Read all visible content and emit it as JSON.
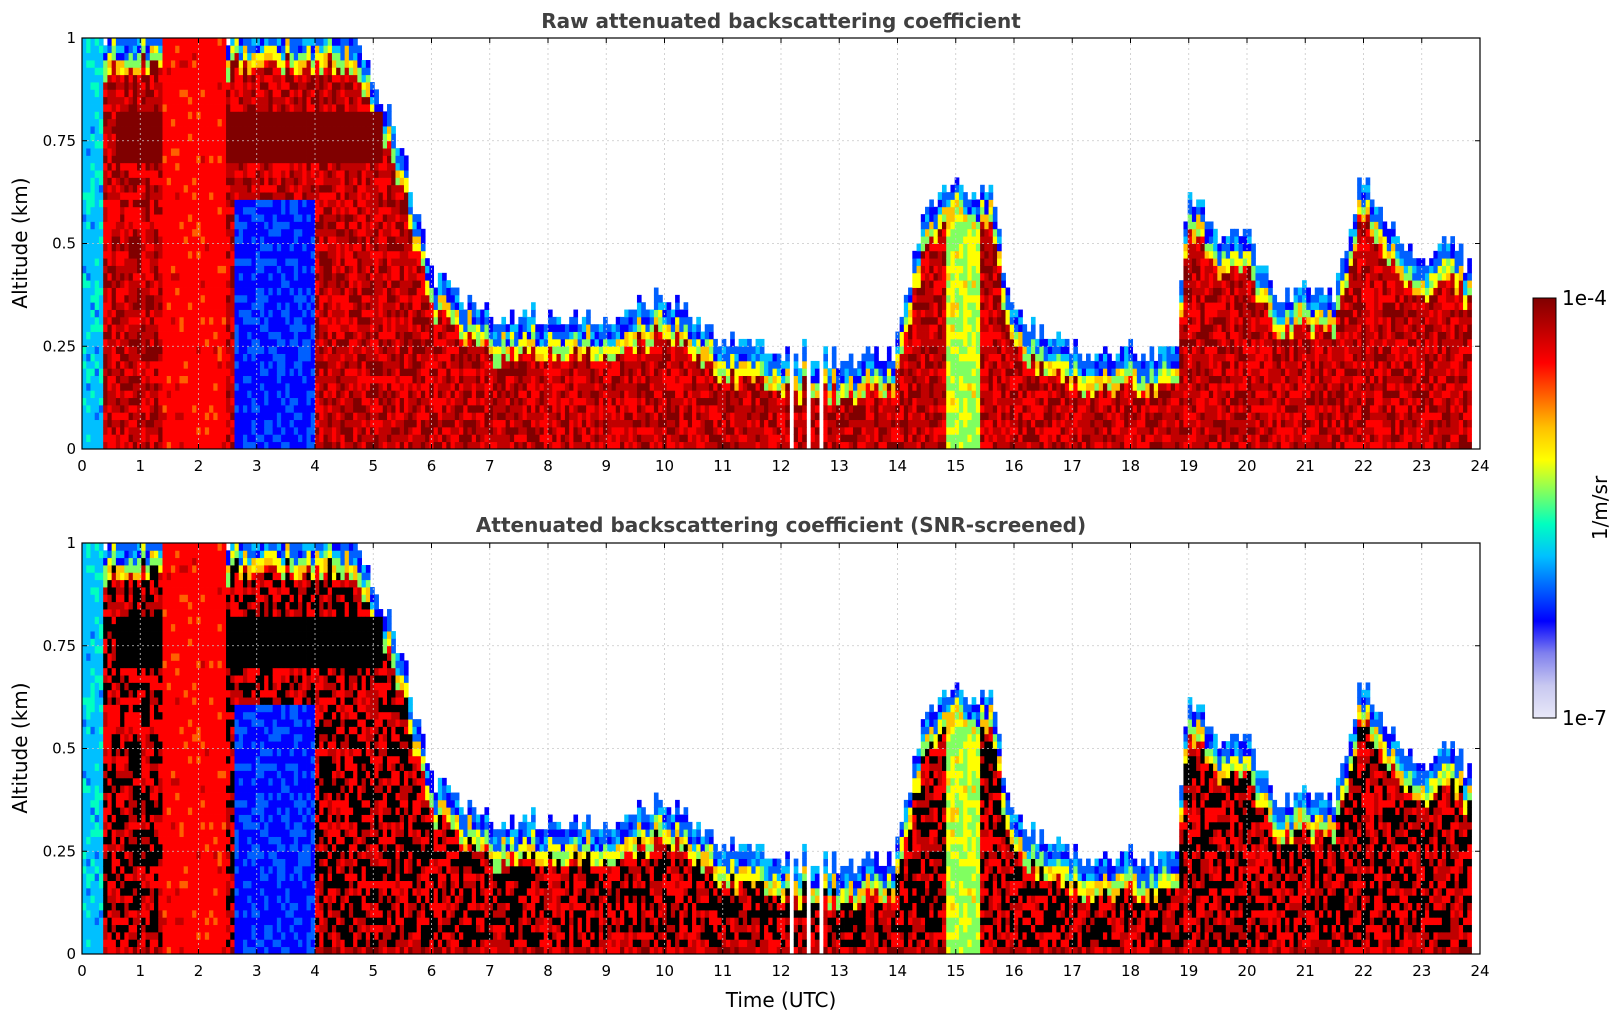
{
  "chart_data": [
    {
      "type": "heatmap",
      "title": "Raw attenuated backscattering coefficient",
      "xlabel": "",
      "ylabel": "Altitude (km)",
      "xlim": [
        0,
        24
      ],
      "ylim": [
        0,
        1
      ],
      "x_ticks": [
        "0",
        "1",
        "2",
        "3",
        "4",
        "5",
        "6",
        "7",
        "8",
        "9",
        "10",
        "11",
        "12",
        "13",
        "14",
        "15",
        "16",
        "17",
        "18",
        "19",
        "20",
        "21",
        "22",
        "23",
        "24"
      ],
      "y_ticks": [
        "0",
        "0.25",
        "0.5",
        "0.75",
        "1"
      ],
      "grid": true,
      "snr_screened": false,
      "cloud_top_km": {
        "time_utc": [
          0.0,
          0.5,
          1.0,
          1.5,
          2.0,
          2.5,
          3.0,
          3.5,
          4.0,
          4.5,
          5.0,
          5.5,
          6.0,
          7.0,
          8.0,
          9.0,
          10.0,
          11.0,
          12.0,
          13.0,
          13.9,
          14.5,
          15.0,
          15.6,
          16.0,
          17.0,
          18.0,
          18.8,
          19.0,
          19.5,
          20.0,
          20.5,
          21.0,
          21.5,
          22.0,
          22.5,
          23.0,
          23.5,
          23.8
        ],
        "altitude_km": [
          1.0,
          1.0,
          1.0,
          1.0,
          1.0,
          1.0,
          1.0,
          1.0,
          1.0,
          1.0,
          0.9,
          0.7,
          0.4,
          0.3,
          0.3,
          0.3,
          0.35,
          0.25,
          0.22,
          0.2,
          0.2,
          0.58,
          0.62,
          0.6,
          0.3,
          0.22,
          0.22,
          0.22,
          0.62,
          0.5,
          0.5,
          0.35,
          0.38,
          0.35,
          0.65,
          0.5,
          0.42,
          0.5,
          0.42
        ]
      }
    },
    {
      "type": "heatmap",
      "title": "Attenuated backscattering coefficient (SNR-screened)",
      "xlabel": "Time (UTC)",
      "ylabel": "Altitude (km)",
      "xlim": [
        0,
        24
      ],
      "ylim": [
        0,
        1
      ],
      "x_ticks": [
        "0",
        "1",
        "2",
        "3",
        "4",
        "5",
        "6",
        "7",
        "8",
        "9",
        "10",
        "11",
        "12",
        "13",
        "14",
        "15",
        "16",
        "17",
        "18",
        "19",
        "20",
        "21",
        "22",
        "23",
        "24"
      ],
      "y_ticks": [
        "0",
        "0.25",
        "0.5",
        "0.75",
        "1"
      ],
      "grid": true,
      "snr_screened": true,
      "cloud_top_km": {
        "time_utc": [
          0.0,
          0.5,
          1.0,
          1.5,
          2.0,
          2.5,
          3.0,
          3.5,
          4.0,
          4.5,
          5.0,
          5.5,
          6.0,
          7.0,
          8.0,
          9.0,
          10.0,
          11.0,
          12.0,
          13.0,
          13.9,
          14.5,
          15.0,
          15.6,
          16.0,
          17.0,
          18.0,
          18.8,
          19.0,
          19.5,
          20.0,
          20.5,
          21.0,
          21.5,
          22.0,
          22.5,
          23.0,
          23.5,
          23.8
        ],
        "altitude_km": [
          1.0,
          1.0,
          1.0,
          1.0,
          1.0,
          1.0,
          1.0,
          1.0,
          1.0,
          1.0,
          0.9,
          0.7,
          0.4,
          0.3,
          0.3,
          0.3,
          0.35,
          0.25,
          0.22,
          0.2,
          0.2,
          0.58,
          0.62,
          0.6,
          0.3,
          0.22,
          0.22,
          0.22,
          0.62,
          0.5,
          0.5,
          0.35,
          0.38,
          0.35,
          0.65,
          0.5,
          0.42,
          0.5,
          0.42
        ]
      }
    }
  ],
  "colorbar": {
    "label": "1/m/sr",
    "max_label": "1e-4",
    "min_label": "1e-7",
    "range": [
      1e-07,
      0.0001
    ],
    "scale": "log",
    "colormap": [
      "#e8e8f8",
      "#c8c8f0",
      "#8080ee",
      "#0000ff",
      "#0060ff",
      "#00c0ff",
      "#00ffc0",
      "#80ff60",
      "#ffff00",
      "#ffc000",
      "#ff6000",
      "#ff0000",
      "#c00000",
      "#800000"
    ]
  },
  "colors": {
    "background": "#ffffff",
    "grid": "#c8c8c8",
    "title": "#404040",
    "screened_mask": "#000000"
  }
}
